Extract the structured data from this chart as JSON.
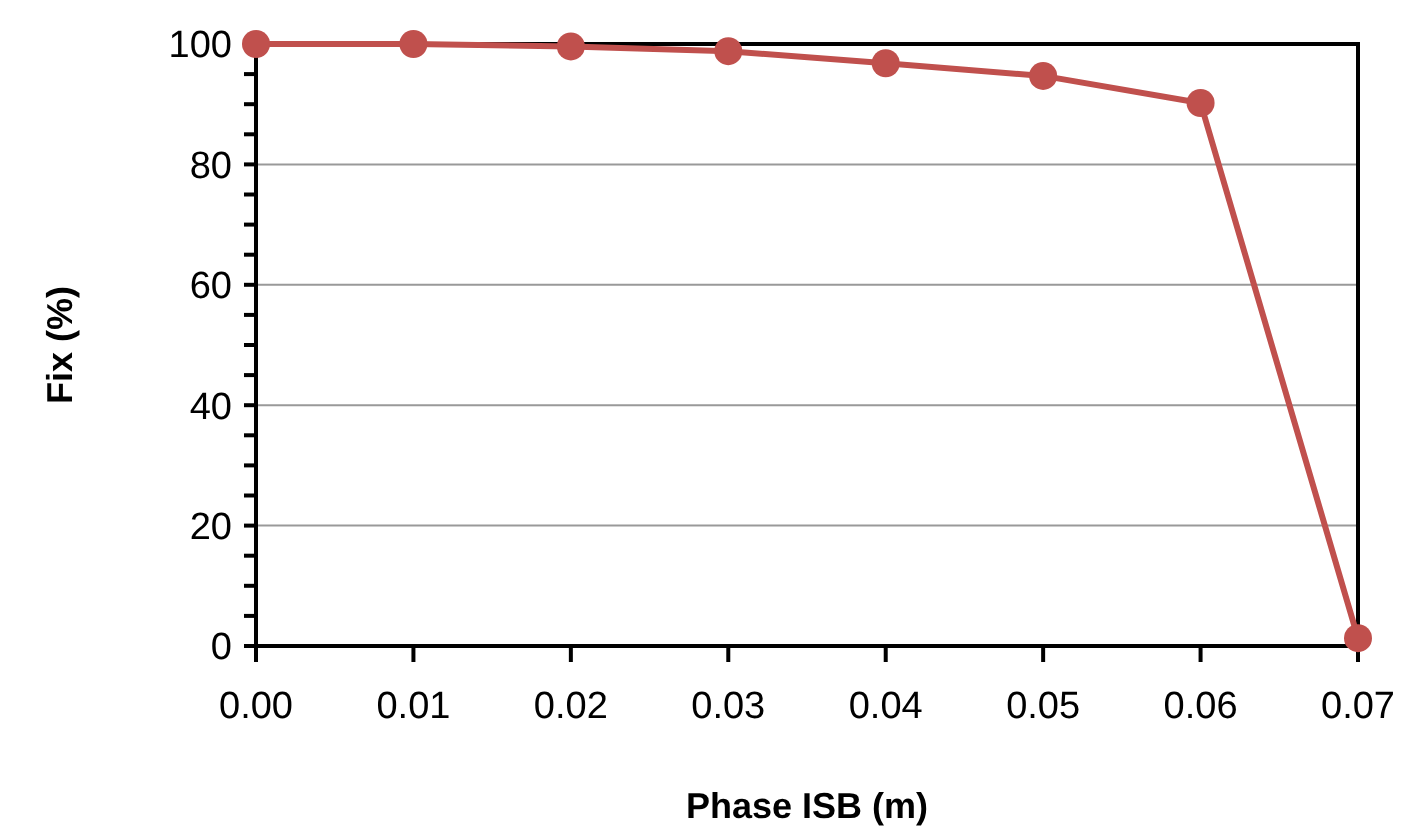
{
  "chart_data": {
    "type": "line",
    "xlabel": "Phase ISB (m)",
    "ylabel": "Fix (%)",
    "x": [
      0,
      0.01,
      0.02,
      0.03,
      0.04,
      0.05,
      0.06,
      0.07
    ],
    "series": [
      {
        "color": "#c0504d",
        "values": [
          100,
          100,
          99.6,
          98.8,
          96.8,
          94.7,
          90.2,
          1.3
        ]
      }
    ],
    "xlim": [
      0,
      0.07
    ],
    "xticks": [
      {
        "value": 0,
        "label": "0.00"
      },
      {
        "value": 0.01,
        "label": "0.01"
      },
      {
        "value": 0.02,
        "label": "0.02"
      },
      {
        "value": 0.03,
        "label": "0.03"
      },
      {
        "value": 0.04,
        "label": "0.04"
      },
      {
        "value": 0.05,
        "label": "0.05"
      },
      {
        "value": 0.06,
        "label": "0.06"
      },
      {
        "value": 0.07,
        "label": "0.07"
      }
    ],
    "ylim": [
      0,
      100
    ],
    "yticks": [
      0,
      {
        "value": 5,
        "label": null
      },
      {
        "value": 10,
        "label": null
      },
      {
        "value": 15,
        "label": null
      },
      20,
      {
        "value": 25,
        "label": null
      },
      {
        "value": 30,
        "label": null
      },
      {
        "value": 35,
        "label": null
      },
      40,
      {
        "value": 45,
        "label": null
      },
      {
        "value": 50,
        "label": null
      },
      {
        "value": 55,
        "label": null
      },
      60,
      {
        "value": 65,
        "label": null
      },
      {
        "value": 70,
        "label": null
      },
      {
        "value": 75,
        "label": null
      },
      80,
      {
        "value": 85,
        "label": null
      },
      {
        "value": 90,
        "label": null
      },
      {
        "value": 95,
        "label": null
      },
      100
    ],
    "grid": "y",
    "marker": "circle",
    "line_style": "solid"
  }
}
